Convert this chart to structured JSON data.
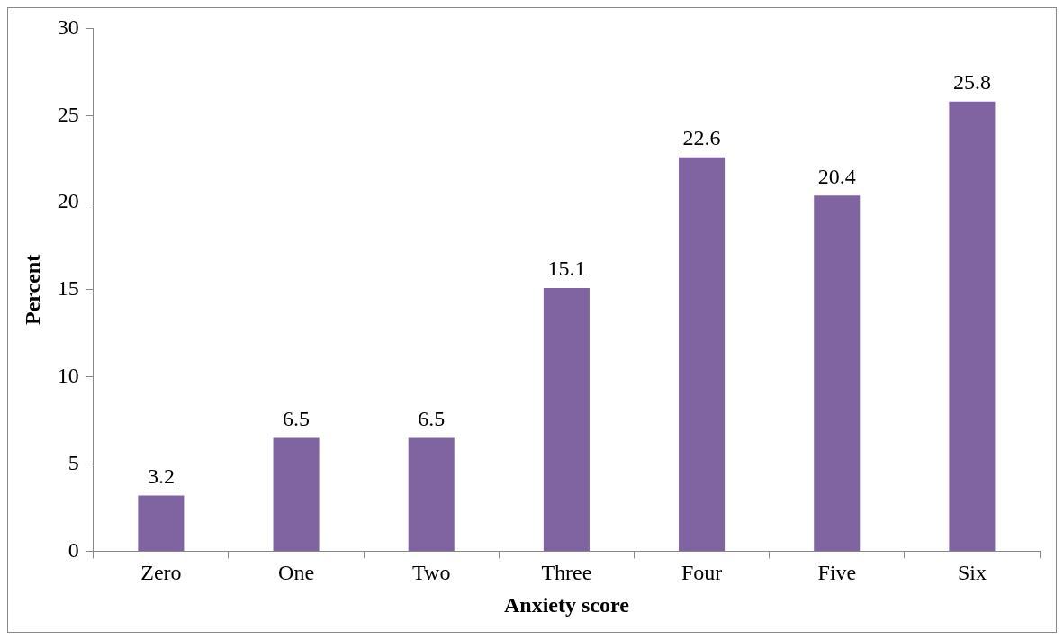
{
  "chart_data": {
    "type": "bar",
    "xlabel": "Anxiety score",
    "ylabel": "Percent",
    "categories": [
      "Zero",
      "One",
      "Two",
      "Three",
      "Four",
      "Five",
      "Six"
    ],
    "values": [
      3.2,
      6.5,
      6.5,
      15.1,
      22.6,
      20.4,
      25.8
    ],
    "color": "#8064a2",
    "ylim": [
      0,
      30
    ],
    "yticks": [
      0,
      5,
      10,
      15,
      20,
      25,
      30
    ],
    "grid": false,
    "legend": false,
    "data_labels": true
  }
}
